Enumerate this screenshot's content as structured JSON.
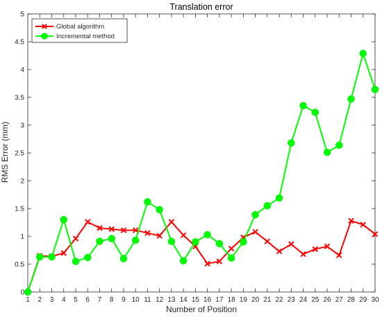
{
  "chart_data": {
    "type": "line",
    "title": "Translation error",
    "xlabel": "Number of Position",
    "ylabel": "RMS Error (mm)",
    "x": [
      1,
      2,
      3,
      4,
      5,
      6,
      7,
      8,
      9,
      10,
      11,
      12,
      13,
      14,
      15,
      16,
      17,
      18,
      19,
      20,
      21,
      22,
      23,
      24,
      25,
      26,
      27,
      28,
      29,
      30
    ],
    "xlim": [
      1,
      30
    ],
    "ylim": [
      0,
      5
    ],
    "yticks": [
      "0",
      "0.5",
      "1",
      "1.5",
      "2",
      "2.5",
      "3",
      "3.5",
      "4",
      "4.5",
      "5"
    ],
    "grid": false,
    "legend_position": "top-left",
    "series": [
      {
        "name": "Global algorithm",
        "color": "#ff0000",
        "marker": "x",
        "values": [
          0.0,
          0.65,
          0.64,
          0.7,
          0.96,
          1.26,
          1.15,
          1.13,
          1.11,
          1.11,
          1.06,
          1.01,
          1.26,
          1.02,
          0.82,
          0.51,
          0.55,
          0.78,
          0.98,
          1.08,
          0.91,
          0.73,
          0.86,
          0.68,
          0.77,
          0.82,
          0.66,
          1.28,
          1.21,
          1.04
        ]
      },
      {
        "name": "Incremental method",
        "color": "#00ff00",
        "marker": "circle",
        "values": [
          0.0,
          0.63,
          0.63,
          1.3,
          0.55,
          0.62,
          0.91,
          0.96,
          0.6,
          0.93,
          1.62,
          1.48,
          0.91,
          0.56,
          0.9,
          1.03,
          0.87,
          0.61,
          0.9,
          1.39,
          1.55,
          1.69,
          2.68,
          3.35,
          3.23,
          2.51,
          2.64,
          3.47,
          4.29,
          3.64
        ]
      }
    ]
  }
}
